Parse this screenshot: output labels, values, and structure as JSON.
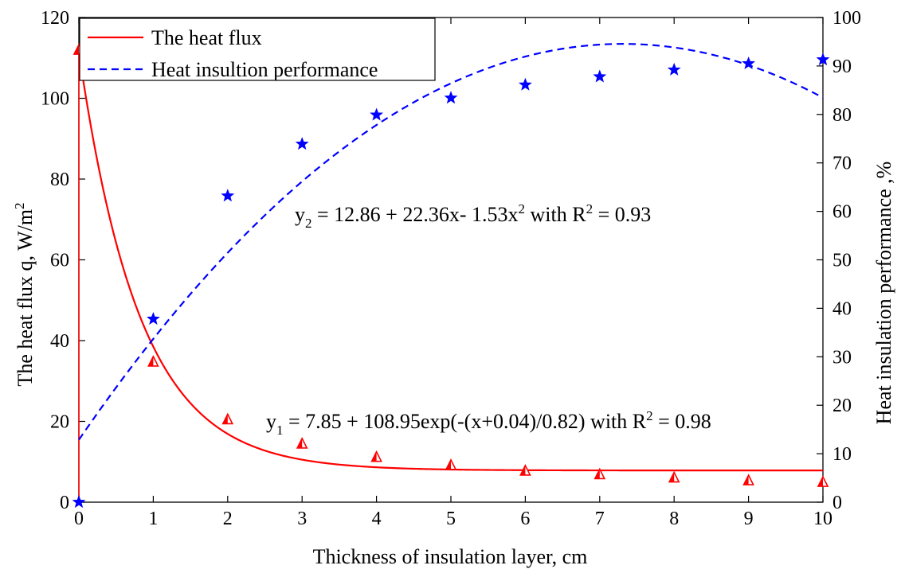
{
  "chart_data": {
    "type": "scatter",
    "xlabel": "Thickness of insulation layer, cm",
    "ylabel_left": "The heat flux q, W/m",
    "ylabel_left_sup": "2",
    "ylabel_right": "Heat insulation performance ,%",
    "xlim": [
      0,
      10
    ],
    "ylim_left": [
      0,
      120
    ],
    "ylim_right": [
      0,
      100
    ],
    "x_ticks": [
      0,
      1,
      2,
      3,
      4,
      5,
      6,
      7,
      8,
      9,
      10
    ],
    "y_left_ticks": [
      0,
      20,
      40,
      60,
      80,
      100,
      120
    ],
    "y_right_ticks": [
      0,
      10,
      20,
      30,
      40,
      50,
      60,
      70,
      80,
      90,
      100
    ],
    "legend": {
      "position": "top-left",
      "entries": [
        {
          "label": "The heat flux",
          "color": "#ff0000",
          "style": "solid"
        },
        {
          "label": "Heat insultion performance",
          "color": "#0000ff",
          "style": "dashed"
        }
      ]
    },
    "series": [
      {
        "marker": "triangle",
        "axis": "left",
        "color": "#ff0000",
        "x": [
          0,
          1,
          2,
          3,
          4,
          5,
          6,
          7,
          8,
          9,
          10
        ],
        "values": [
          112,
          34.8,
          20.5,
          14.5,
          11.2,
          9.2,
          7.8,
          6.9,
          6.1,
          5.4,
          5.0
        ]
      },
      {
        "marker": "star",
        "axis": "right",
        "color": "#0000ff",
        "x": [
          0,
          1,
          2,
          3,
          4,
          5,
          6,
          7,
          8,
          9,
          10
        ],
        "values": [
          0,
          37.8,
          63.2,
          73.9,
          79.9,
          83.4,
          86.1,
          87.8,
          89.2,
          90.5,
          91.3
        ]
      }
    ],
    "fits": [
      {
        "axis": "left",
        "color": "#ff0000",
        "style": "solid",
        "model": "exponential",
        "a": 7.85,
        "b": 108.95,
        "c": 0.04,
        "d": 0.82,
        "label_main": "y",
        "label_sub": "1",
        "label_rest": " = 7.85 + 108.95exp(-(x+0.04)/0.82) with R",
        "label_sup": "2",
        "label_end": " = 0.98"
      },
      {
        "axis": "right",
        "color": "#0000ff",
        "style": "dashed",
        "model": "quadratic",
        "a": 12.86,
        "b": 22.36,
        "c": -1.53,
        "label_main": "y",
        "label_sub": "2",
        "label_rest": " = 12.86 + 22.36x- 1.53x",
        "label_sup": "2",
        "label_mid": " with R",
        "label_sup2": "2",
        "label_end": " = 0.93"
      }
    ]
  }
}
